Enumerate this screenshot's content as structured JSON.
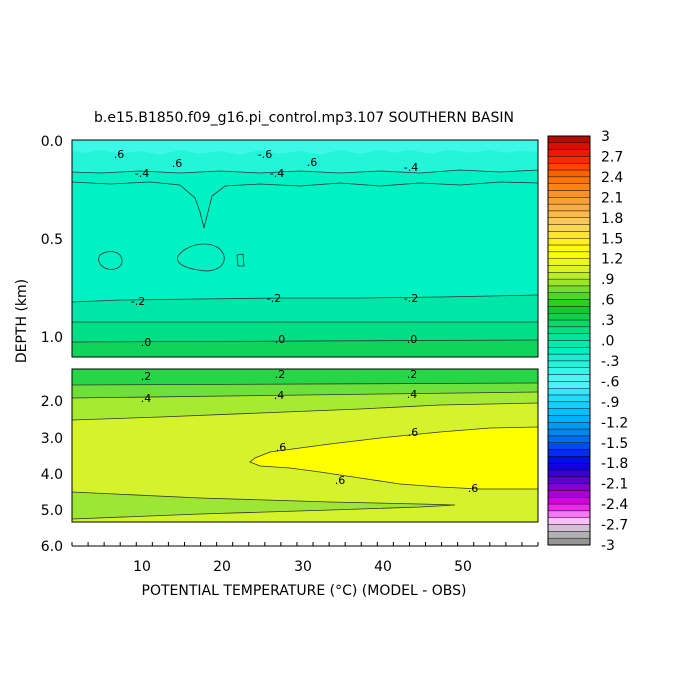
{
  "chart_data": {
    "type": "heatmap",
    "title": "b.e15.B1850.f09_g16.pi_control.mp3.107 SOUTHERN BASIN",
    "xlabel": "POTENTIAL TEMPERATURE (°C) (MODEL - OBS)",
    "ylabel": "DEPTH (km)",
    "xlim": [
      1,
      59
    ],
    "x_ticks": [
      "10",
      "20",
      "30",
      "40",
      "50"
    ],
    "upper_panel": {
      "ylim": [
        0.0,
        1.2
      ],
      "y_ticks": [
        "0.0",
        "0.5",
        "1.0"
      ]
    },
    "lower_panel": {
      "ylim": [
        1.2,
        6.0
      ],
      "y_ticks": [
        "2.0",
        "3.0",
        "4.0",
        "5.0",
        "6.0"
      ]
    },
    "contour_labels": [
      ".6",
      ".6",
      "-.6",
      ".6",
      "-.4",
      "-.4",
      "-.4",
      "-.2",
      "-.2",
      "-.2",
      ".0",
      ".0",
      ".0",
      ".2",
      ".2",
      ".2",
      ".4",
      ".4",
      ".4",
      ".6",
      ".6",
      ".6",
      ".6"
    ],
    "colorbar": {
      "min": -3,
      "max": 3,
      "labels": [
        "3",
        "2.7",
        "2.4",
        "2.1",
        "1.8",
        "1.5",
        "1.2",
        ".9",
        ".6",
        ".3",
        ".0",
        "-.3",
        "-.6",
        "-.9",
        "-1.2",
        "-1.5",
        "-1.8",
        "-2.1",
        "-2.4",
        "-2.7",
        "-3"
      ]
    }
  }
}
